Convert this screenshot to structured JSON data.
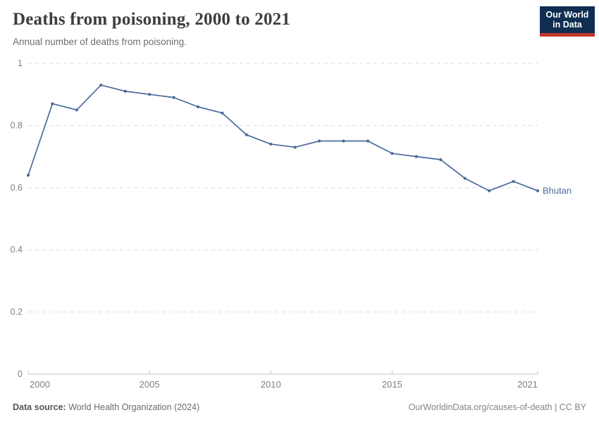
{
  "header": {
    "title": "Deaths from poisoning, 2000 to 2021",
    "subtitle": "Annual number of deaths from poisoning."
  },
  "logo": {
    "line1": "Our World",
    "line2": "in Data",
    "bg_color": "#0f2e52",
    "bar_color": "#c0392b"
  },
  "chart_data": {
    "type": "line",
    "title": "Deaths from poisoning, 2000 to 2021",
    "subtitle": "Annual number of deaths from poisoning.",
    "xlabel": "",
    "ylabel": "",
    "xlim": [
      2000,
      2021
    ],
    "ylim": [
      0,
      1
    ],
    "grid": "horizontal-dashed",
    "legend_position": "end-of-line",
    "xticks": {
      "values": [
        2000,
        2005,
        2010,
        2015,
        2021
      ],
      "labels": [
        "2000",
        "2005",
        "2010",
        "2015",
        "2021"
      ]
    },
    "yticks": {
      "values": [
        0,
        0.2,
        0.4,
        0.6,
        0.8,
        1
      ],
      "labels": [
        "0",
        "0.2",
        "0.4",
        "0.6",
        "0.8",
        "1"
      ]
    },
    "series": [
      {
        "name": "Bhutan",
        "color": "#4c6a9c",
        "x": [
          2000,
          2001,
          2002,
          2003,
          2004,
          2005,
          2006,
          2007,
          2008,
          2009,
          2010,
          2011,
          2012,
          2013,
          2014,
          2015,
          2016,
          2017,
          2018,
          2019,
          2020,
          2021
        ],
        "values": [
          0.64,
          0.87,
          0.85,
          0.93,
          0.91,
          0.9,
          0.89,
          0.86,
          0.84,
          0.77,
          0.74,
          0.73,
          0.75,
          0.75,
          0.75,
          0.71,
          0.7,
          0.69,
          0.63,
          0.59,
          0.62,
          0.59
        ]
      }
    ],
    "axis_colors": {
      "tick_label": "#808080",
      "gridline": "#dcdcdc",
      "axis_line": "#c4c4c4"
    }
  },
  "footer": {
    "source_label": "Data source:",
    "source_text": " World Health Organization (2024)",
    "credit": "OurWorldinData.org/causes-of-death | CC BY"
  }
}
